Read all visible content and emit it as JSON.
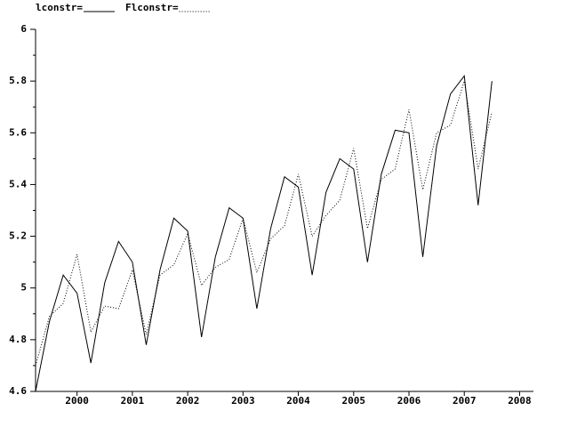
{
  "chart_data": {
    "type": "line",
    "x": [
      1999.25,
      1999.5,
      1999.75,
      2000,
      2000.25,
      2000.5,
      2000.75,
      2001,
      2001.25,
      2001.5,
      2001.75,
      2002,
      2002.25,
      2002.5,
      2002.75,
      2003,
      2003.25,
      2003.5,
      2003.75,
      2004,
      2004.25,
      2004.5,
      2004.75,
      2005,
      2005.25,
      2005.5,
      2005.75,
      2006,
      2006.25,
      2006.5,
      2006.75,
      2007,
      2007.25,
      2007.5
    ],
    "series": [
      {
        "name": "lconstr=",
        "color": "#000000",
        "dash": "solid",
        "values": [
          4.6,
          4.87,
          5.05,
          4.98,
          4.71,
          5.02,
          5.18,
          5.1,
          4.78,
          5.07,
          5.27,
          5.22,
          4.81,
          5.12,
          5.31,
          5.27,
          4.92,
          5.23,
          5.43,
          5.39,
          5.05,
          5.37,
          5.5,
          5.46,
          5.1,
          5.44,
          5.61,
          5.6,
          5.12,
          5.55,
          5.75,
          5.82,
          5.32,
          5.8
        ]
      },
      {
        "name": "Flconstr=",
        "color": "#000000",
        "dash": "dotted",
        "values": [
          4.7,
          4.89,
          4.94,
          5.13,
          4.83,
          4.93,
          4.92,
          5.07,
          4.82,
          5.05,
          5.09,
          5.21,
          5.01,
          5.08,
          5.11,
          5.27,
          5.06,
          5.19,
          5.24,
          5.44,
          5.2,
          5.28,
          5.34,
          5.54,
          5.23,
          5.42,
          5.46,
          5.69,
          5.38,
          5.6,
          5.63,
          5.8,
          5.46,
          5.68
        ]
      }
    ],
    "xlim": [
      1999.25,
      2008.25
    ],
    "xticks": [
      2000,
      2001,
      2002,
      2003,
      2004,
      2005,
      2006,
      2007,
      2008
    ],
    "ylim": [
      4.6,
      6
    ],
    "yticks": [
      4.6,
      4.8,
      5,
      5.2,
      5.4,
      5.6,
      5.8,
      6
    ],
    "yminorticks": [
      4.7,
      4.9,
      5.1,
      5.3,
      5.5,
      5.7,
      5.9
    ]
  }
}
